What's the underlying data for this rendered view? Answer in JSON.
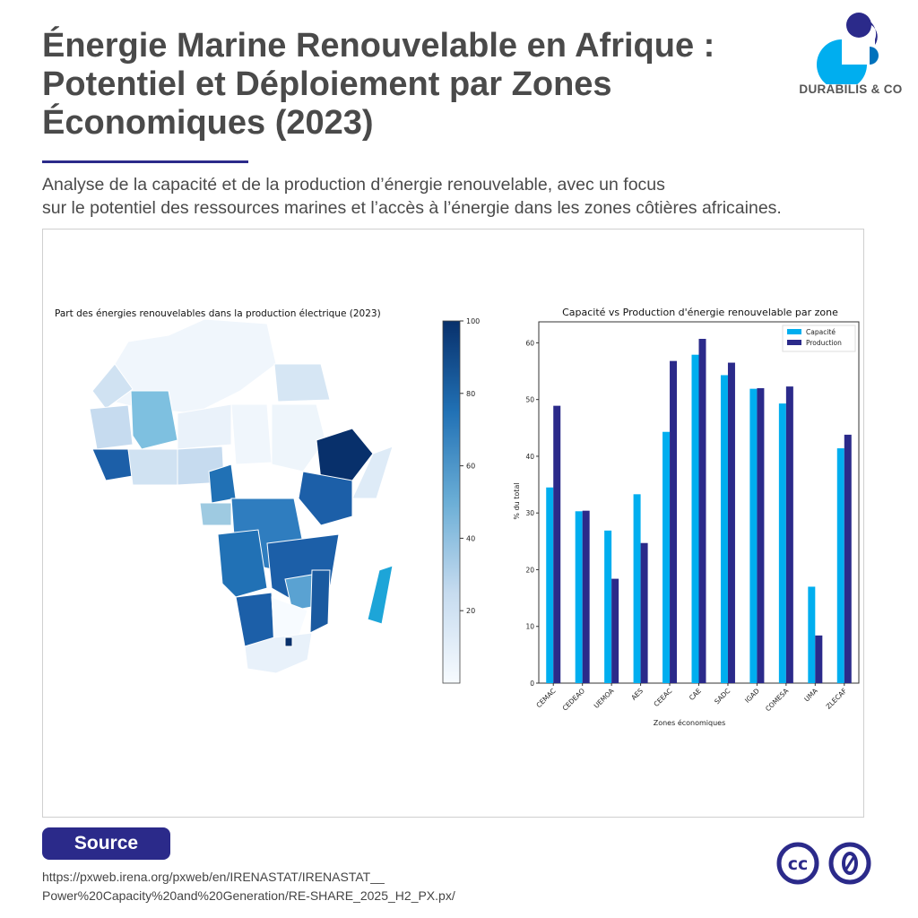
{
  "header": {
    "title": "Énergie Marine Renouvelable en Afrique : Potentiel et Déploiement par Zones Économiques (2023)",
    "subtitle_line1": "Analyse de la capacité et de la production d’énergie renouvelable, avec un focus",
    "subtitle_line2": "sur le potentiel des ressources marines et l’accès à l’énergie dans les zones côtières africaines."
  },
  "logo": {
    "text": "DURABILIS & CO",
    "colors": {
      "light": "#00aeef",
      "dark": "#2b2a8a",
      "mid": "#0072bc"
    }
  },
  "footer": {
    "source_label": "Source",
    "url_line1": "https://pxweb.irena.org/pxweb/en/IRENASTAT/IRENASTAT__",
    "url_line2": "Power%20Capacity%20and%20Generation/RE-SHARE_2025_H2_PX.px/",
    "license_icons": [
      "cc-icon",
      "cc-zero-icon"
    ],
    "license_color": "#2b2a8a"
  },
  "chart_data": [
    {
      "type": "heatmap",
      "subtype": "choropleth-map",
      "title": "Part des énergies renouvelables dans la production électrique (2023)",
      "colormap": "Blues",
      "colorbar_range": [
        0,
        100
      ],
      "colorbar_ticks": [
        "20",
        "40",
        "60",
        "80",
        "100"
      ]
    },
    {
      "type": "bar",
      "title": "Capacité vs Production d'énergie renouvelable par zone",
      "xlabel": "Zones économiques",
      "ylabel": "% du total",
      "ylim": [
        0,
        63.7
      ],
      "yticks": [
        0,
        10,
        20,
        30,
        40,
        50,
        60
      ],
      "grid": false,
      "legend": "top-right",
      "categories": [
        "CEMAC",
        "CEDEAO",
        "UEMOA",
        "AES",
        "CEEAC",
        "CAE",
        "SADC",
        "IGAD",
        "COMESA",
        "UMA",
        "ZLECAF"
      ],
      "series": [
        {
          "name": "Capacité",
          "color": "#00aeef",
          "values": [
            34.5,
            30.3,
            26.9,
            33.3,
            44.3,
            57.9,
            54.3,
            51.9,
            49.3,
            17.0,
            41.4
          ]
        },
        {
          "name": "Production",
          "color": "#2b2a8a",
          "values": [
            48.9,
            30.4,
            18.4,
            24.7,
            56.8,
            60.7,
            56.5,
            52.0,
            52.3,
            8.4,
            43.8
          ]
        }
      ]
    }
  ]
}
